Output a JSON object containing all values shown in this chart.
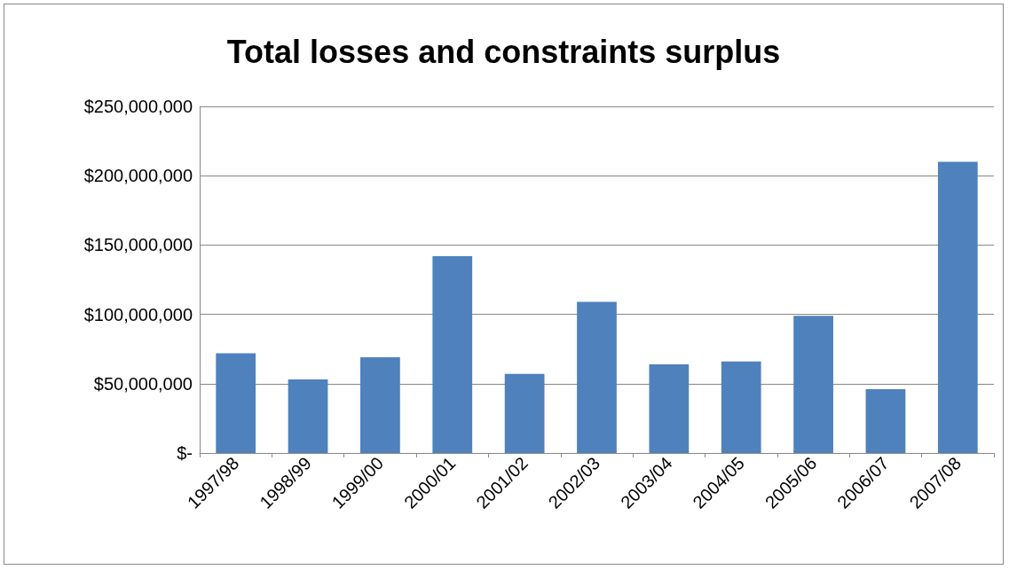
{
  "chart_data": {
    "type": "bar",
    "title": "Total losses and constraints surplus",
    "categories": [
      "1997/98",
      "1998/99",
      "1999/00",
      "2000/01",
      "2001/02",
      "2002/03",
      "2003/04",
      "2004/05",
      "2005/06",
      "2006/07",
      "2007/08"
    ],
    "values": [
      72000000,
      53000000,
      69000000,
      142000000,
      57000000,
      109000000,
      64000000,
      66000000,
      99000000,
      46000000,
      210000000
    ],
    "color": "#4f81bd",
    "ylim": [
      0,
      250000000
    ],
    "yticks": [
      {
        "value": 0,
        "label": "$-"
      },
      {
        "value": 50000000,
        "label": "$50,000,000"
      },
      {
        "value": 100000000,
        "label": "$100,000,000"
      },
      {
        "value": 150000000,
        "label": "$150,000,000"
      },
      {
        "value": 200000000,
        "label": "$200,000,000"
      },
      {
        "value": 250000000,
        "label": "$250,000,000"
      }
    ],
    "grid": "y"
  }
}
